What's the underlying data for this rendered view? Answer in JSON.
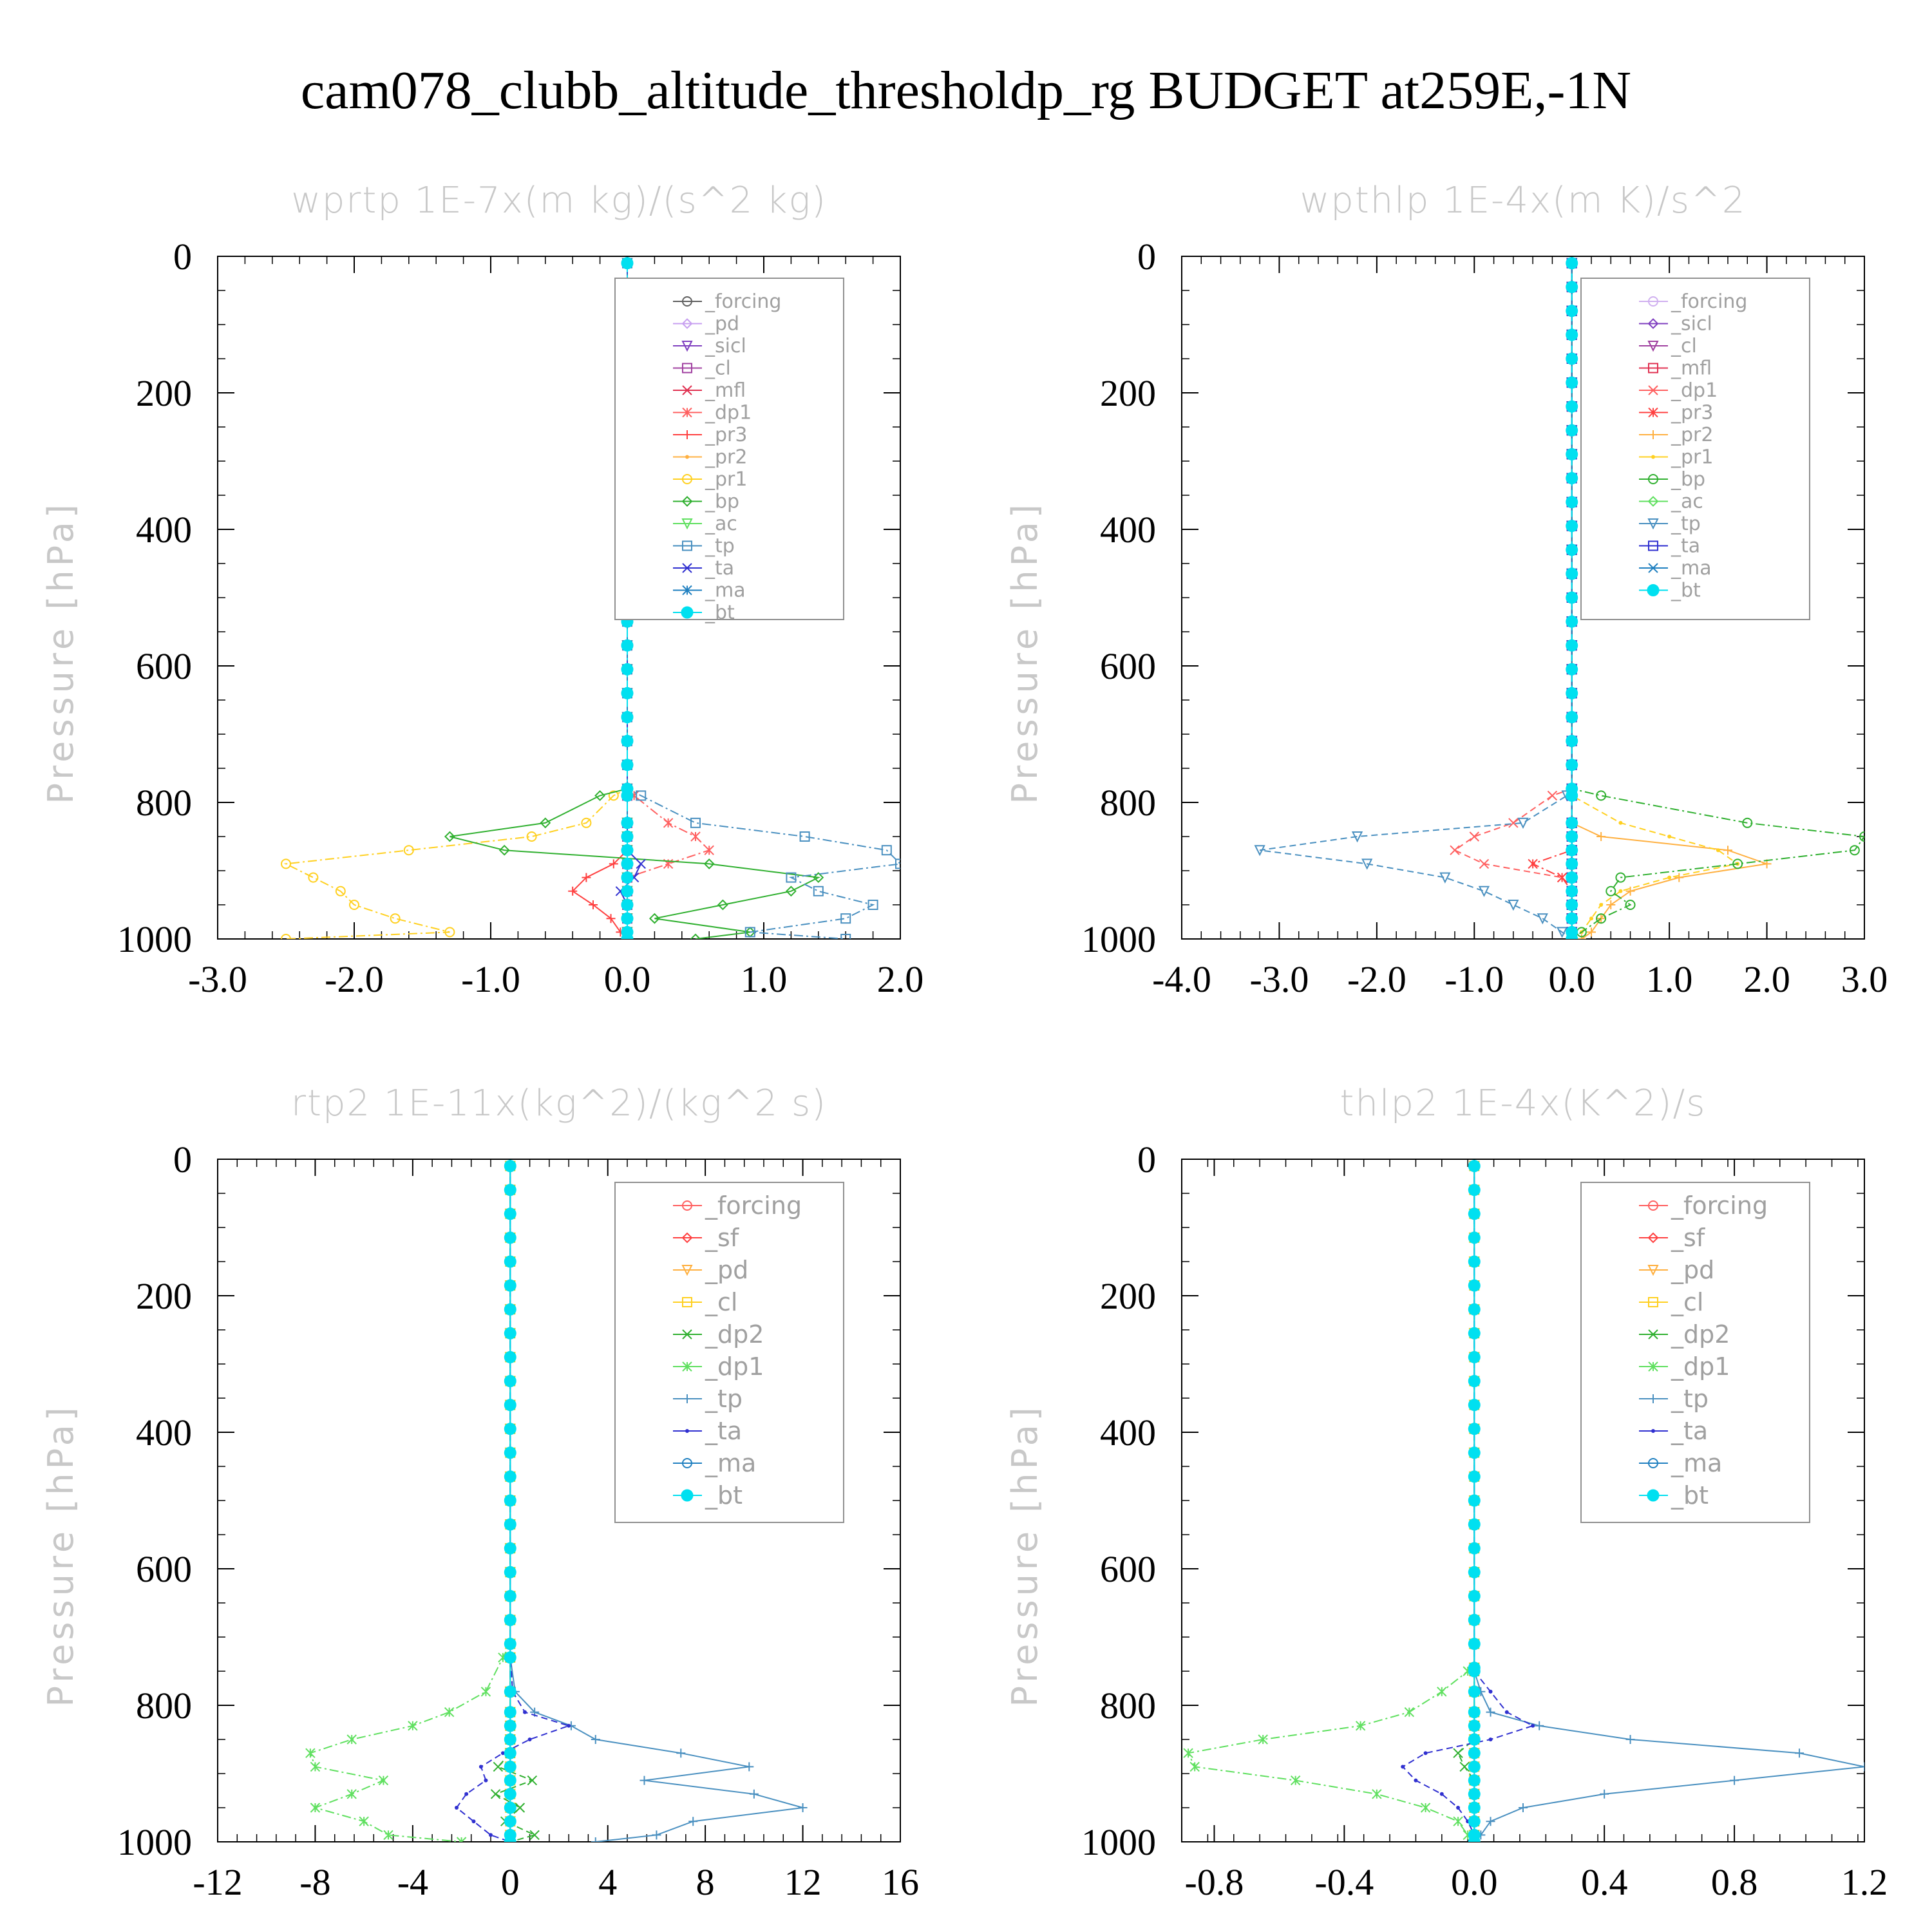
{
  "page_title": "cam078_clubb_altitude_thresholdp_rg  BUDGET at259E,-1N",
  "chart_data": [
    {
      "type": "line",
      "title": "wprtp  1E-7x(m kg)/(s^2 kg)",
      "ylabel": "Pressure [hPa]",
      "xlabel": "",
      "xlim": [
        -3.0,
        2.0
      ],
      "ylim": [
        1000,
        0
      ],
      "xticks": [
        "-3.0",
        "-2.0",
        "-1.0",
        "0.0",
        "1.0",
        "2.0"
      ],
      "xtick_values": [
        -3,
        -2,
        -1,
        0,
        1,
        2
      ],
      "yticks": [
        "0",
        "200",
        "400",
        "600",
        "800",
        "1000"
      ],
      "ytick_values": [
        0,
        200,
        400,
        600,
        800,
        1000
      ],
      "levels": [
        790,
        830,
        850,
        870,
        890,
        910,
        930,
        950,
        970,
        990,
        1000
      ],
      "series": [
        {
          "name": "_forcing",
          "color": "#606060",
          "values": [
            0,
            0,
            0,
            0,
            0,
            0,
            0,
            0,
            0,
            0,
            0
          ]
        },
        {
          "name": "_pd",
          "color": "#c8a0f0",
          "values": [
            0,
            0,
            0,
            0,
            0,
            0,
            0,
            0,
            0,
            0,
            0
          ]
        },
        {
          "name": "_sicl",
          "color": "#8040c0",
          "values": [
            0,
            0,
            0,
            0,
            0,
            0,
            0,
            0,
            0,
            0,
            0
          ]
        },
        {
          "name": "_cl",
          "color": "#a040a0",
          "values": [
            0,
            0,
            0,
            0,
            0,
            0,
            0,
            0,
            0,
            0,
            0
          ]
        },
        {
          "name": "_mfl",
          "color": "#e03050",
          "values": [
            0,
            0,
            0,
            0,
            0,
            0,
            0,
            0,
            0,
            0,
            0
          ]
        },
        {
          "name": "_dp1",
          "color": "#ff6060",
          "values": [
            0.05,
            0.3,
            0.5,
            0.6,
            0.3,
            0,
            0,
            0,
            0,
            0,
            0
          ]
        },
        {
          "name": "_pr3",
          "color": "#ff4040",
          "values": [
            0,
            0,
            0,
            0,
            -0.1,
            -0.3,
            -0.4,
            -0.25,
            -0.12,
            -0.05,
            0
          ]
        },
        {
          "name": "_pr2",
          "color": "#ffb040",
          "values": [
            0,
            0,
            0,
            0,
            0,
            0,
            0,
            0,
            0,
            0,
            0
          ]
        },
        {
          "name": "_pr1",
          "color": "#ffd020",
          "values": [
            -0.1,
            -0.3,
            -0.7,
            -1.6,
            -2.5,
            -2.3,
            -2.1,
            -2.0,
            -1.7,
            -1.3,
            -2.5
          ]
        },
        {
          "name": "_bp",
          "color": "#30b030",
          "values": [
            -0.2,
            -0.6,
            -1.3,
            -0.9,
            0.6,
            1.4,
            1.2,
            0.7,
            0.2,
            0.9,
            0.5
          ]
        },
        {
          "name": "_ac",
          "color": "#60e060",
          "values": [
            0,
            0,
            0,
            0,
            0,
            0,
            0,
            0,
            0,
            0,
            0
          ]
        },
        {
          "name": "_tp",
          "color": "#4a90c0",
          "values": [
            0.1,
            0.5,
            1.3,
            1.9,
            2.0,
            1.2,
            1.4,
            1.8,
            1.6,
            0.9,
            1.6
          ]
        },
        {
          "name": "_ta",
          "color": "#3030d0",
          "values": [
            0,
            0,
            0,
            0,
            0.1,
            0.05,
            -0.05,
            0,
            0,
            0,
            0
          ]
        },
        {
          "name": "_ma",
          "color": "#2080c0",
          "values": [
            0,
            0,
            0,
            0,
            0,
            0,
            0,
            0,
            0,
            0,
            0
          ]
        },
        {
          "name": "_bt",
          "color": "#00e0f0",
          "values": [
            0,
            0,
            0,
            0,
            0,
            0,
            0,
            0,
            0,
            0,
            0
          ]
        }
      ]
    },
    {
      "type": "line",
      "title": "wpthlp  1E-4x(m K)/s^2",
      "ylabel": "Pressure [hPa]",
      "xlabel": "",
      "xlim": [
        -4.0,
        3.0
      ],
      "ylim": [
        1000,
        0
      ],
      "xticks": [
        "-4.0",
        "-3.0",
        "-2.0",
        "-1.0",
        "0.0",
        "1.0",
        "2.0",
        "3.0"
      ],
      "xtick_values": [
        -4,
        -3,
        -2,
        -1,
        0,
        1,
        2,
        3
      ],
      "yticks": [
        "0",
        "200",
        "400",
        "600",
        "800",
        "1000"
      ],
      "ytick_values": [
        0,
        200,
        400,
        600,
        800,
        1000
      ],
      "levels": [
        790,
        830,
        850,
        870,
        890,
        910,
        930,
        950,
        970,
        990,
        1000
      ],
      "series": [
        {
          "name": "_forcing",
          "color": "#d0b0f0",
          "values": [
            0,
            0,
            0,
            0,
            0,
            0,
            0,
            0,
            0,
            0,
            0
          ]
        },
        {
          "name": "_sicl",
          "color": "#8040c0",
          "values": [
            0,
            0,
            0,
            0,
            0,
            0,
            0,
            0,
            0,
            0,
            0
          ]
        },
        {
          "name": "_cl",
          "color": "#a040a0",
          "values": [
            0,
            0,
            0,
            0,
            0,
            0,
            0,
            0,
            0,
            0,
            0
          ]
        },
        {
          "name": "_mfl",
          "color": "#e03050",
          "values": [
            0,
            0,
            0,
            0,
            0,
            0,
            0,
            0,
            0,
            0,
            0
          ]
        },
        {
          "name": "_dp1",
          "color": "#ff6060",
          "values": [
            -0.2,
            -0.6,
            -1.0,
            -1.2,
            -0.9,
            -0.1,
            0,
            0,
            0,
            0,
            0
          ]
        },
        {
          "name": "_pr3",
          "color": "#ff4040",
          "values": [
            0,
            0,
            0,
            0,
            -0.4,
            -0.1,
            0,
            0,
            0,
            0,
            0
          ]
        },
        {
          "name": "_pr2",
          "color": "#ffb040",
          "values": [
            0,
            0,
            0.3,
            1.6,
            2.0,
            1.1,
            0.6,
            0.4,
            0.3,
            0.2,
            0.1
          ]
        },
        {
          "name": "_pr1",
          "color": "#ffd020",
          "values": [
            0,
            0.5,
            1.0,
            1.5,
            1.7,
            1.0,
            0.5,
            0.3,
            0.2,
            0.1,
            0
          ]
        },
        {
          "name": "_bp",
          "color": "#30b030",
          "values": [
            0.3,
            1.8,
            3.0,
            2.9,
            1.7,
            0.5,
            0.4,
            0.6,
            0.3,
            0.1,
            0
          ]
        },
        {
          "name": "_ac",
          "color": "#60e060",
          "values": [
            0,
            0,
            0,
            0,
            0,
            0,
            0,
            0,
            0,
            0,
            0
          ]
        },
        {
          "name": "_tp",
          "color": "#4a90c0",
          "values": [
            -0.05,
            -0.5,
            -2.2,
            -3.2,
            -2.1,
            -1.3,
            -0.9,
            -0.6,
            -0.3,
            -0.1,
            0
          ]
        },
        {
          "name": "_ta",
          "color": "#3030d0",
          "values": [
            0,
            0,
            0,
            0,
            0,
            0,
            0,
            0,
            0,
            0,
            0
          ]
        },
        {
          "name": "_ma",
          "color": "#2080c0",
          "values": [
            0,
            0,
            0,
            0,
            0,
            0,
            0,
            0,
            0,
            0,
            0
          ]
        },
        {
          "name": "_bt",
          "color": "#00e0f0",
          "values": [
            0,
            0,
            0,
            0,
            0,
            0,
            0,
            0,
            0,
            0,
            0
          ]
        }
      ]
    },
    {
      "type": "line",
      "title": "rtp2  1E-11x(kg^2)/(kg^2 s)",
      "ylabel": "Pressure [hPa]",
      "xlabel": "",
      "xlim": [
        -12,
        16
      ],
      "ylim": [
        1000,
        0
      ],
      "xticks": [
        "-12",
        "-8",
        "-4",
        "0",
        "4",
        "8",
        "12",
        "16"
      ],
      "xtick_values": [
        -12,
        -8,
        -4,
        0,
        4,
        8,
        12,
        16
      ],
      "yticks": [
        "0",
        "200",
        "400",
        "600",
        "800",
        "1000"
      ],
      "yticks_values_note": "",
      "ytick_values": [
        0,
        200,
        400,
        600,
        800,
        1000
      ],
      "levels": [
        730,
        780,
        810,
        830,
        850,
        870,
        890,
        910,
        930,
        950,
        970,
        990,
        1000
      ],
      "series": [
        {
          "name": "_forcing",
          "color": "#ff6060",
          "values": [
            0,
            0,
            0,
            0,
            0,
            0,
            0,
            0,
            0,
            0,
            0,
            0,
            0
          ]
        },
        {
          "name": "_sf",
          "color": "#ff4040",
          "values": [
            0,
            0,
            0,
            0,
            0,
            0,
            0,
            0,
            0,
            0,
            0,
            0,
            0
          ]
        },
        {
          "name": "_pd",
          "color": "#ffb040",
          "values": [
            0,
            0,
            0,
            0,
            0,
            0,
            0,
            0,
            0,
            0,
            0,
            0,
            0
          ]
        },
        {
          "name": "_cl",
          "color": "#ffd020",
          "values": [
            0,
            0,
            0,
            0,
            0,
            0,
            0,
            0,
            0,
            0,
            0,
            0,
            0
          ]
        },
        {
          "name": "_dp2",
          "color": "#30b030",
          "values": [
            0,
            0,
            0,
            0,
            0,
            0,
            -0.5,
            0.9,
            -0.6,
            0.4,
            -0.2,
            1.0,
            0
          ]
        },
        {
          "name": "_dp1",
          "color": "#60e060",
          "values": [
            -0.3,
            -1.0,
            -2.5,
            -4.0,
            -6.5,
            -8.2,
            -8.0,
            -5.2,
            -6.5,
            -8.0,
            -6.0,
            -5.0,
            -2.0
          ]
        },
        {
          "name": "_tp",
          "color": "#4a90c0",
          "values": [
            0,
            0.2,
            1.0,
            2.5,
            3.5,
            7.0,
            9.8,
            5.5,
            10.0,
            12.0,
            7.5,
            6.0,
            3.5
          ]
        },
        {
          "name": "_ta",
          "color": "#3030d0",
          "values": [
            0,
            0.1,
            0.6,
            2.4,
            0.8,
            -0.3,
            -1.2,
            -1.0,
            -1.8,
            -2.2,
            -1.5,
            -0.8,
            0
          ]
        },
        {
          "name": "_ma",
          "color": "#2080c0",
          "values": [
            0,
            0,
            0,
            0,
            0,
            0,
            0,
            0,
            0,
            0,
            0,
            0,
            0
          ]
        },
        {
          "name": "_bt",
          "color": "#00e0f0",
          "values": [
            0,
            0,
            0,
            0,
            0,
            0,
            0,
            0,
            0,
            0,
            0,
            0,
            0
          ]
        }
      ]
    },
    {
      "type": "line",
      "title": "thlp2  1E-4x(K^2)/s",
      "ylabel": "Pressure [hPa]",
      "xlabel": "",
      "xlim": [
        -0.9,
        1.2
      ],
      "ylim": [
        1000,
        0
      ],
      "xticks": [
        "-0.8",
        "-0.4",
        "0.0",
        "0.4",
        "0.8",
        "1.2"
      ],
      "xtick_values": [
        -0.8,
        -0.4,
        0,
        0.4,
        0.8,
        1.2
      ],
      "yticks": [
        "0",
        "200",
        "400",
        "600",
        "800",
        "1000"
      ],
      "ytick_values": [
        0,
        200,
        400,
        600,
        800,
        1000
      ],
      "levels": [
        750,
        780,
        810,
        830,
        850,
        870,
        890,
        910,
        930,
        950,
        970,
        990,
        1000
      ],
      "series": [
        {
          "name": "_forcing",
          "color": "#ff6060",
          "values": [
            0,
            0,
            0,
            0,
            0,
            0,
            0,
            0,
            0,
            0,
            0,
            0,
            0
          ]
        },
        {
          "name": "_sf",
          "color": "#ff4040",
          "values": [
            0,
            0,
            0,
            0,
            0,
            0,
            0,
            0,
            0,
            0,
            0,
            0,
            0
          ]
        },
        {
          "name": "_pd",
          "color": "#ffb040",
          "values": [
            0,
            0,
            0,
            0,
            0,
            0,
            0,
            0,
            0,
            0,
            0,
            0,
            0
          ]
        },
        {
          "name": "_cl",
          "color": "#ffd020",
          "values": [
            0,
            0,
            0,
            0,
            0,
            0,
            0,
            0,
            0,
            0,
            0,
            0,
            0
          ]
        },
        {
          "name": "_dp2",
          "color": "#30b030",
          "values": [
            0,
            0,
            0,
            0,
            0,
            -0.05,
            -0.03,
            0,
            0,
            0,
            0,
            0,
            0
          ]
        },
        {
          "name": "_dp1",
          "color": "#60e060",
          "values": [
            -0.02,
            -0.1,
            -0.2,
            -0.35,
            -0.65,
            -0.88,
            -0.86,
            -0.55,
            -0.3,
            -0.15,
            -0.05,
            -0.02,
            0
          ]
        },
        {
          "name": "_tp",
          "color": "#4a90c0",
          "values": [
            0,
            0.02,
            0.05,
            0.2,
            0.48,
            1.0,
            1.2,
            0.8,
            0.4,
            0.15,
            0.05,
            0.02,
            0
          ]
        },
        {
          "name": "_ta",
          "color": "#3030d0",
          "values": [
            0,
            0.05,
            0.1,
            0.18,
            0.05,
            -0.15,
            -0.22,
            -0.18,
            -0.1,
            -0.05,
            -0.02,
            0,
            0
          ]
        },
        {
          "name": "_ma",
          "color": "#2080c0",
          "values": [
            0,
            0,
            0,
            0,
            0,
            0,
            0,
            0,
            0,
            0,
            0,
            0,
            0
          ]
        },
        {
          "name": "_bt",
          "color": "#00e0f0",
          "values": [
            0,
            0,
            0,
            0,
            0,
            0,
            0,
            0,
            0,
            0,
            0,
            0,
            0
          ]
        }
      ]
    }
  ]
}
